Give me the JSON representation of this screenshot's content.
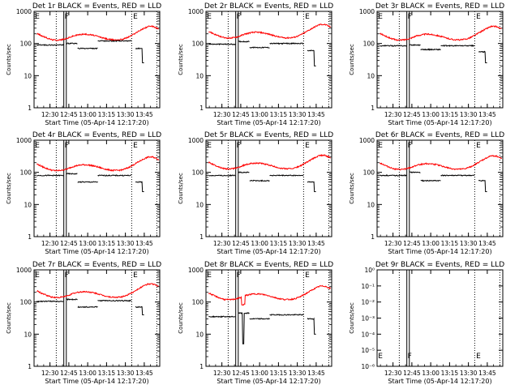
{
  "figure": {
    "colors": {
      "events": "#000000",
      "lld": "#ff0000",
      "axes": "#000000"
    },
    "panels": [
      {
        "id": 1,
        "title": "Det 1r BLACK = Events, RED = LLD",
        "ylabel": "Counts/sec",
        "xlabel": "Start Time (05-Apr-14 12:17:20)"
      },
      {
        "id": 2,
        "title": "Det 2r BLACK = Events, RED = LLD",
        "ylabel": "Counts/sec",
        "xlabel": "Start Time (05-Apr-14 12:17:20)"
      },
      {
        "id": 3,
        "title": "Det 3r BLACK = Events, RED = LLD",
        "ylabel": "Counts/sec",
        "xlabel": "Start Time (05-Apr-14 12:17:20)"
      },
      {
        "id": 4,
        "title": "Det 4r BLACK = Events, RED = LLD",
        "ylabel": "Counts/sec",
        "xlabel": "Start Time (05-Apr-14 12:17:20)"
      },
      {
        "id": 5,
        "title": "Det 5r BLACK = Events, RED = LLD",
        "ylabel": "Counts/sec",
        "xlabel": "Start Time (05-Apr-14 12:17:20)"
      },
      {
        "id": 6,
        "title": "Det 6r BLACK = Events, RED = LLD",
        "ylabel": "Counts/sec",
        "xlabel": "Start Time (05-Apr-14 12:17:20)"
      },
      {
        "id": 7,
        "title": "Det 7r BLACK = Events, RED = LLD",
        "ylabel": "Counts/sec",
        "xlabel": "Start Time (05-Apr-14 12:17:20)"
      },
      {
        "id": 8,
        "title": "Det 8r BLACK = Events, RED = LLD",
        "ylabel": "Counts/sec",
        "xlabel": "Start Time (05-Apr-14 12:17:20)"
      },
      {
        "id": 9,
        "title": "Det 9r BLACK = Events, RED = LLD",
        "ylabel": "Counts/sec",
        "xlabel": "Start Time (05-Apr-14 12:17:20)"
      }
    ]
  },
  "chart_data": {
    "type": "line",
    "layout": "3x3 grid",
    "x_unit": "time of day (05-Apr-14)",
    "x_ticks": [
      "12:30",
      "12:45",
      "13:00",
      "13:15",
      "13:30",
      "13:45"
    ],
    "xlim": [
      "12:17:20",
      "13:57:20"
    ],
    "y_scale": "log",
    "y_ticks_std": [
      "1",
      "10",
      "100",
      "1000"
    ],
    "ylim_std": [
      1,
      1000
    ],
    "y_ticks_panel9": [
      "10⁰",
      "10⁻¹",
      "10⁻²",
      "10⁻³",
      "10⁻⁴",
      "10⁻⁵",
      "10⁻⁶"
    ],
    "ylim_panel9": [
      1e-06,
      1
    ],
    "markers": [
      {
        "label": "E",
        "time": "12:17:30"
      },
      {
        "label": "F",
        "time": "12:41:00"
      },
      {
        "label": "E",
        "time": "13:35:30"
      }
    ],
    "dotted_lines": [
      "12:35:00",
      "13:35:00",
      "13:55:00"
    ],
    "solid_lines": [
      "12:41:00",
      "12:43:00"
    ],
    "lld_profile": {
      "x": [
        "12:20",
        "12:24",
        "12:28",
        "12:32",
        "12:36",
        "12:40",
        "12:44",
        "12:48",
        "12:52",
        "12:56",
        "13:00",
        "13:04",
        "13:08",
        "13:12",
        "13:16",
        "13:20",
        "13:24",
        "13:28",
        "13:32",
        "13:36",
        "13:40",
        "13:44",
        "13:48",
        "13:52",
        "13:56"
      ],
      "relative": [
        1.55,
        1.3,
        1.12,
        1.0,
        0.98,
        1.02,
        1.12,
        1.3,
        1.42,
        1.5,
        1.48,
        1.4,
        1.28,
        1.15,
        1.05,
        1.0,
        1.0,
        1.05,
        1.2,
        1.45,
        1.8,
        2.2,
        2.6,
        2.6,
        2.2
      ]
    },
    "events_segments": [
      {
        "start": "12:19:30",
        "end": "12:41:00"
      },
      {
        "start": "12:43:00",
        "end": "12:52:00"
      },
      {
        "start": "12:52:00",
        "end": "13:08:00"
      },
      {
        "start": "13:08:00",
        "end": "13:35:00"
      },
      {
        "start": "13:38:00",
        "end": "13:45:00"
      }
    ],
    "series": [
      {
        "panel": 1,
        "lld_base": 130,
        "events_levels": [
          90,
          100,
          70,
          120,
          70
        ],
        "events_end_drop": 25
      },
      {
        "panel": 2,
        "lld_base": 150,
        "events_levels": [
          95,
          115,
          75,
          100,
          60
        ],
        "events_end_drop": 20
      },
      {
        "panel": 3,
        "lld_base": 130,
        "events_levels": [
          85,
          90,
          65,
          85,
          55
        ],
        "events_end_drop": 25
      },
      {
        "panel": 4,
        "lld_base": 115,
        "events_levels": [
          80,
          90,
          50,
          80,
          50
        ],
        "events_end_drop": 25
      },
      {
        "panel": 5,
        "lld_base": 130,
        "events_levels": [
          80,
          100,
          55,
          80,
          50
        ],
        "events_end_drop": 25
      },
      {
        "panel": 6,
        "lld_base": 125,
        "events_levels": [
          80,
          100,
          55,
          80,
          55
        ],
        "events_end_drop": 25
      },
      {
        "panel": 7,
        "lld_base": 140,
        "events_levels": [
          105,
          120,
          70,
          110,
          70
        ],
        "events_end_drop": 40
      },
      {
        "panel": 8,
        "lld_base": 120,
        "events_levels": [
          35,
          45,
          30,
          40,
          30
        ],
        "events_end_drop": 10,
        "spike_time": "12:47:00",
        "spike_min": 5
      },
      {
        "panel": 9,
        "lld_base": null,
        "events_levels": null
      }
    ]
  }
}
